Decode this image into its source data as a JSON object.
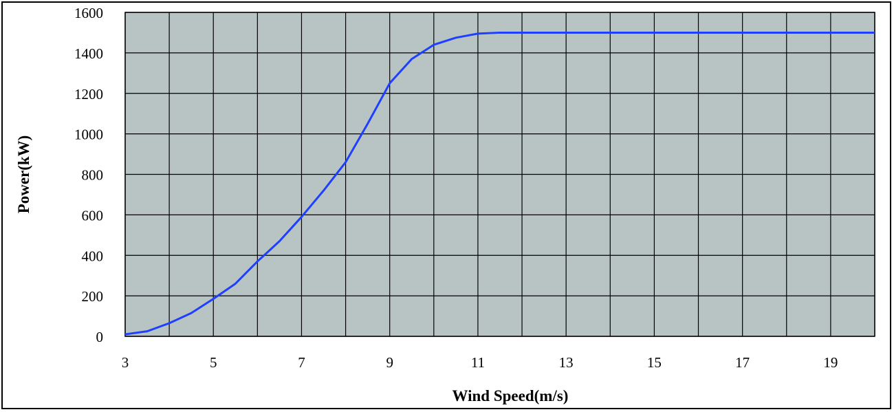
{
  "chart_data": {
    "type": "line",
    "title": "",
    "xlabel": "Wind Speed(m/s)",
    "ylabel": "Power(kW)",
    "xlim": [
      3,
      20
    ],
    "ylim": [
      0,
      1600
    ],
    "x_ticks": [
      3,
      5,
      7,
      9,
      11,
      13,
      15,
      17,
      19
    ],
    "x_tick_labels": [
      "3",
      "5",
      "7",
      "9",
      "11",
      "13",
      "15",
      "17",
      "19"
    ],
    "y_ticks": [
      0,
      200,
      400,
      600,
      800,
      1000,
      1200,
      1400,
      1600
    ],
    "y_tick_labels": [
      "0",
      "200",
      "400",
      "600",
      "800",
      "1000",
      "1200",
      "1400",
      "1600"
    ],
    "grid": true,
    "background_color": "#b8c4c4",
    "grid_color": "#000000",
    "series": [
      {
        "color": "#1f3fff",
        "x": [
          3,
          3.5,
          4,
          4.5,
          5,
          5.5,
          6,
          6.5,
          7,
          7.5,
          8,
          8.5,
          9,
          9.5,
          10,
          10.5,
          11,
          11.5,
          12,
          13,
          14,
          15,
          16,
          17,
          18,
          19,
          20
        ],
        "y": [
          10,
          25,
          65,
          115,
          185,
          260,
          370,
          470,
          590,
          720,
          860,
          1050,
          1250,
          1370,
          1440,
          1475,
          1495,
          1500,
          1500,
          1500,
          1500,
          1500,
          1500,
          1500,
          1500,
          1500,
          1500
        ]
      }
    ]
  }
}
